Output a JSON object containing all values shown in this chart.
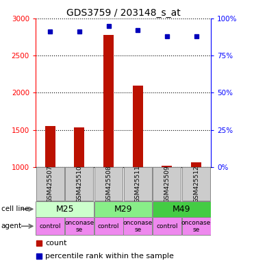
{
  "title": "GDS3759 / 203148_s_at",
  "samples": [
    "GSM425507",
    "GSM425510",
    "GSM425508",
    "GSM425511",
    "GSM425509",
    "GSM425512"
  ],
  "counts": [
    1550,
    1530,
    2780,
    2100,
    1020,
    1060
  ],
  "percentiles": [
    91,
    91,
    95,
    92,
    88,
    88
  ],
  "ylim_left": [
    1000,
    3000
  ],
  "ylim_right": [
    0,
    100
  ],
  "yticks_left": [
    1000,
    1500,
    2000,
    2500,
    3000
  ],
  "yticks_right": [
    0,
    25,
    50,
    75,
    100
  ],
  "agents": [
    "control",
    "onconase\nse",
    "control",
    "onconase\nse",
    "control",
    "onconase\nse"
  ],
  "cell_line_data": [
    [
      "M25",
      0,
      2,
      "#ccffcc"
    ],
    [
      "M29",
      2,
      4,
      "#88ee88"
    ],
    [
      "M49",
      4,
      6,
      "#44cc44"
    ]
  ],
  "agent_color": "#ee88ee",
  "bar_color": "#bb1100",
  "dot_color": "#0000bb",
  "sample_box_color": "#cccccc",
  "legend_count_color": "#bb1100",
  "legend_pct_color": "#0000bb",
  "bar_width": 0.35
}
